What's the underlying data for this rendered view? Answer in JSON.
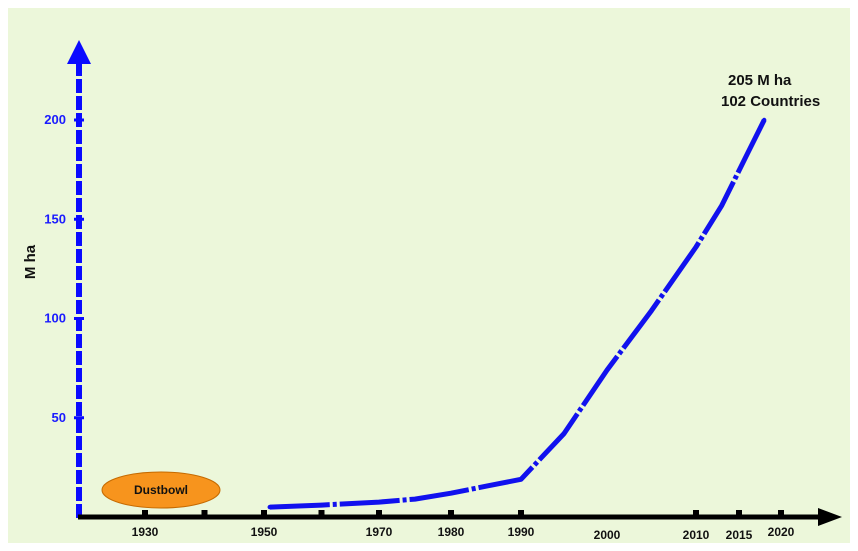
{
  "chart_data": {
    "type": "line",
    "title": "",
    "xlabel": "",
    "ylabel": "M ha",
    "x_tick_labels": [
      "1930",
      "1950",
      "1970",
      "1980",
      "1990",
      "2000",
      "2010",
      "2015",
      "2020"
    ],
    "y_tick_labels": [
      "50",
      "100",
      "150",
      "200"
    ],
    "xlim": [
      1920,
      2024
    ],
    "ylim": [
      0,
      210
    ],
    "series": [
      {
        "x": [
          1951,
          1960,
          1970,
          1975,
          1980,
          1985,
          1990,
          1995,
          2000,
          2005,
          2010,
          2013,
          2016,
          2018
        ],
        "values": [
          5,
          6,
          7.5,
          9,
          12,
          15.5,
          19,
          42,
          74,
          104,
          136,
          157,
          183,
          200
        ]
      }
    ],
    "annotations": {
      "end_line1": "205 M ha",
      "end_line2": "102 Countries"
    },
    "event": {
      "label": "Dustbowl",
      "x": 1930,
      "color": "#f7941d"
    },
    "colors": {
      "line": "#1111ee",
      "axis_y": "#0a0aff",
      "axis_x": "#000000",
      "background": "#ecf7da"
    },
    "grid": false,
    "legend": "none"
  }
}
